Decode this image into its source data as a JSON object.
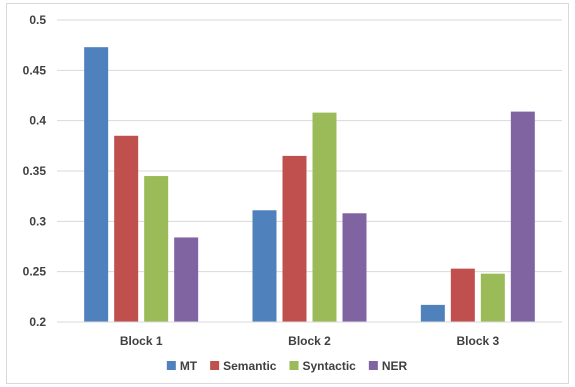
{
  "chart_data": {
    "type": "bar",
    "categories": [
      "Block 1",
      "Block 2",
      "Block 3"
    ],
    "series": [
      {
        "name": "MT",
        "color": "#4f81bd",
        "values": [
          0.473,
          0.311,
          0.217
        ]
      },
      {
        "name": "Semantic",
        "color": "#c0504d",
        "values": [
          0.385,
          0.365,
          0.253
        ]
      },
      {
        "name": "Syntactic",
        "color": "#9bbb59",
        "values": [
          0.345,
          0.408,
          0.248
        ]
      },
      {
        "name": "NER",
        "color": "#8064a2",
        "values": [
          0.284,
          0.308,
          0.409
        ]
      }
    ],
    "ylim": [
      0.2,
      0.5
    ],
    "yticks": [
      "0.2",
      "0.25",
      "0.3",
      "0.35",
      "0.4",
      "0.45",
      "0.5"
    ],
    "grid": true,
    "legend": "bottom"
  }
}
